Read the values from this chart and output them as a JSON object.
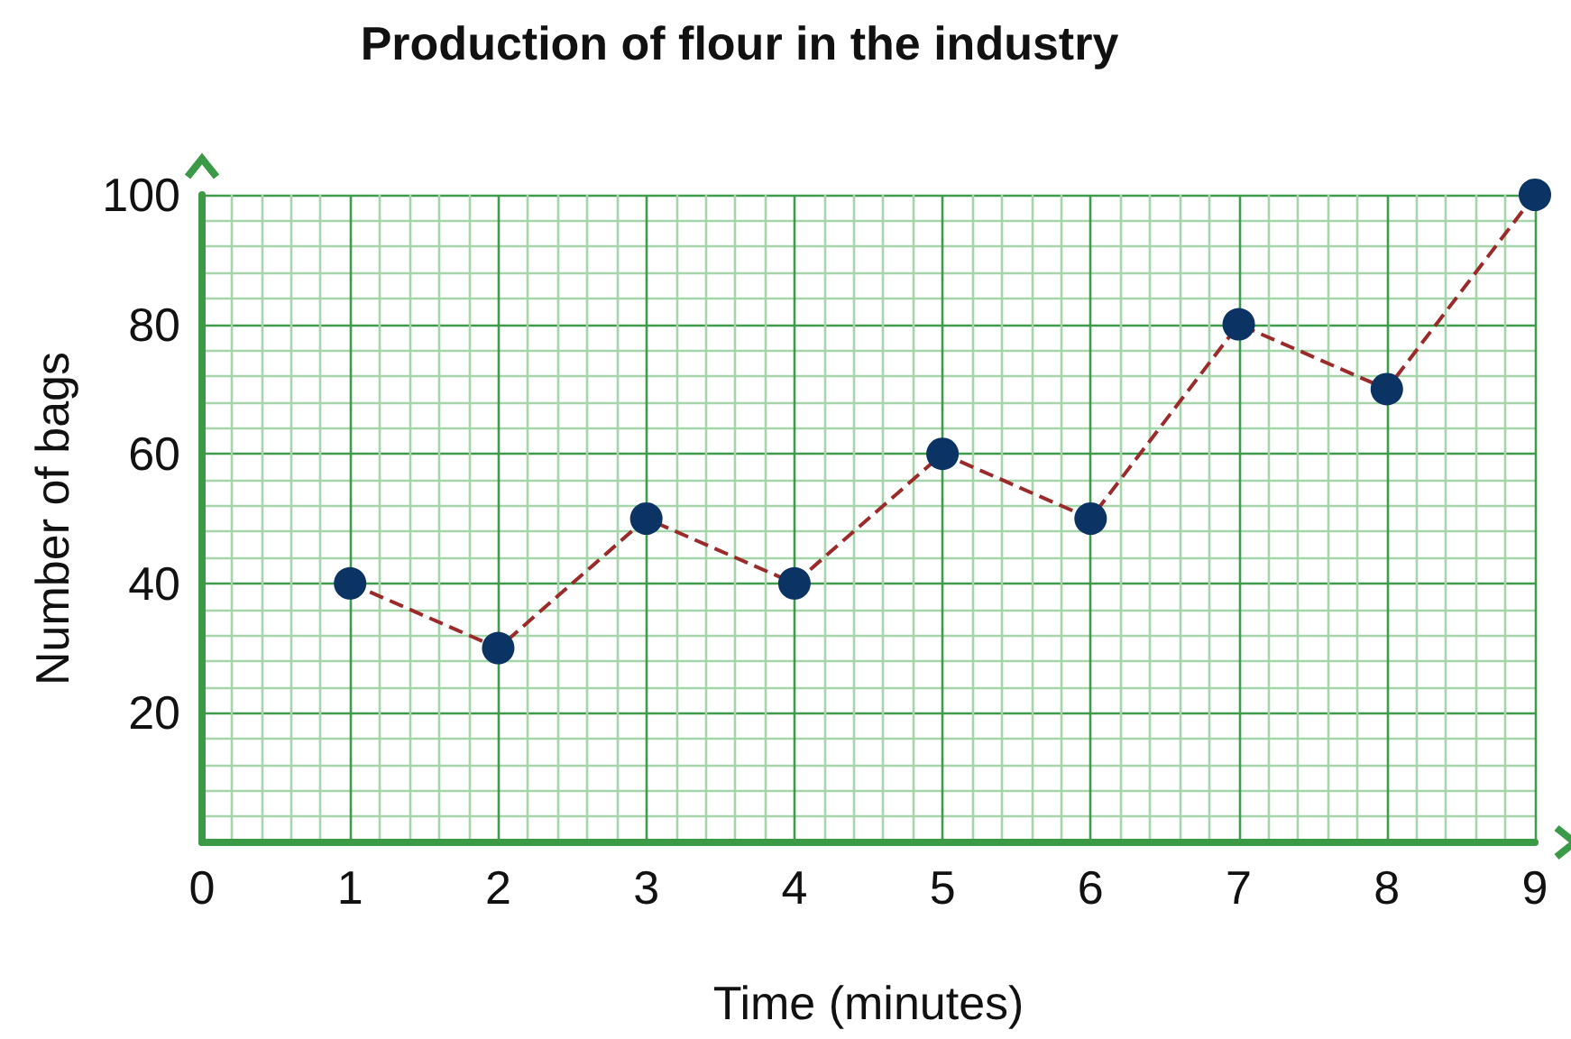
{
  "chart_data": {
    "type": "line",
    "title": "Production of flour in the industry",
    "xlabel": "Time (minutes)",
    "ylabel": "Number of bags",
    "x": [
      1,
      2,
      3,
      4,
      5,
      6,
      7,
      8,
      9
    ],
    "series": [
      {
        "color": "#0b3363",
        "values": [
          40,
          30,
          50,
          40,
          60,
          50,
          80,
          70,
          100
        ]
      }
    ],
    "xlim": [
      0,
      9
    ],
    "xticks": [
      0,
      {
        "value": 0.2,
        "label": null
      },
      {
        "value": 0.4,
        "label": null
      },
      {
        "value": 0.6,
        "label": null
      },
      {
        "value": 0.8,
        "label": null
      },
      1,
      {
        "value": 1.2,
        "label": null
      },
      {
        "value": 1.4,
        "label": null
      },
      {
        "value": 1.6,
        "label": null
      },
      {
        "value": 1.8,
        "label": null
      },
      2,
      {
        "value": 2.2,
        "label": null
      },
      {
        "value": 2.4,
        "label": null
      },
      {
        "value": 2.6,
        "label": null
      },
      {
        "value": 2.8,
        "label": null
      },
      3,
      {
        "value": 3.2,
        "label": null
      },
      {
        "value": 3.4,
        "label": null
      },
      {
        "value": 3.6,
        "label": null
      },
      {
        "value": 3.8,
        "label": null
      },
      4,
      {
        "value": 4.2,
        "label": null
      },
      {
        "value": 4.4,
        "label": null
      },
      {
        "value": 4.6,
        "label": null
      },
      {
        "value": 4.8,
        "label": null
      },
      5,
      {
        "value": 5.2,
        "label": null
      },
      {
        "value": 5.4,
        "label": null
      },
      {
        "value": 5.6,
        "label": null
      },
      {
        "value": 5.8,
        "label": null
      },
      6,
      {
        "value": 6.2,
        "label": null
      },
      {
        "value": 6.4,
        "label": null
      },
      {
        "value": 6.6,
        "label": null
      },
      {
        "value": 6.8,
        "label": null
      },
      7,
      {
        "value": 7.2,
        "label": null
      },
      {
        "value": 7.4,
        "label": null
      },
      {
        "value": 7.6,
        "label": null
      },
      {
        "value": 7.8,
        "label": null
      },
      8,
      {
        "value": 8.2,
        "label": null
      },
      {
        "value": 8.4,
        "label": null
      },
      {
        "value": 8.6,
        "label": null
      },
      {
        "value": 8.8,
        "label": null
      },
      9
    ],
    "ylim": [
      0,
      100
    ],
    "yticks": [
      {
        "value": 0,
        "label": null
      },
      {
        "value": 4,
        "label": null
      },
      {
        "value": 8,
        "label": null
      },
      {
        "value": 12,
        "label": null
      },
      {
        "value": 16,
        "label": null
      },
      20,
      {
        "value": 24,
        "label": null
      },
      {
        "value": 28,
        "label": null
      },
      {
        "value": 32,
        "label": null
      },
      {
        "value": 36,
        "label": null
      },
      40,
      {
        "value": 44,
        "label": null
      },
      {
        "value": 48,
        "label": null
      },
      {
        "value": 52,
        "label": null
      },
      {
        "value": 56,
        "label": null
      },
      60,
      {
        "value": 64,
        "label": null
      },
      {
        "value": 68,
        "label": null
      },
      {
        "value": 72,
        "label": null
      },
      {
        "value": 76,
        "label": null
      },
      80,
      {
        "value": 84,
        "label": null
      },
      {
        "value": 88,
        "label": null
      },
      {
        "value": 92,
        "label": null
      },
      {
        "value": 96,
        "label": null
      },
      100
    ],
    "grid": true,
    "marker": "circle",
    "line_style": "dashed"
  }
}
